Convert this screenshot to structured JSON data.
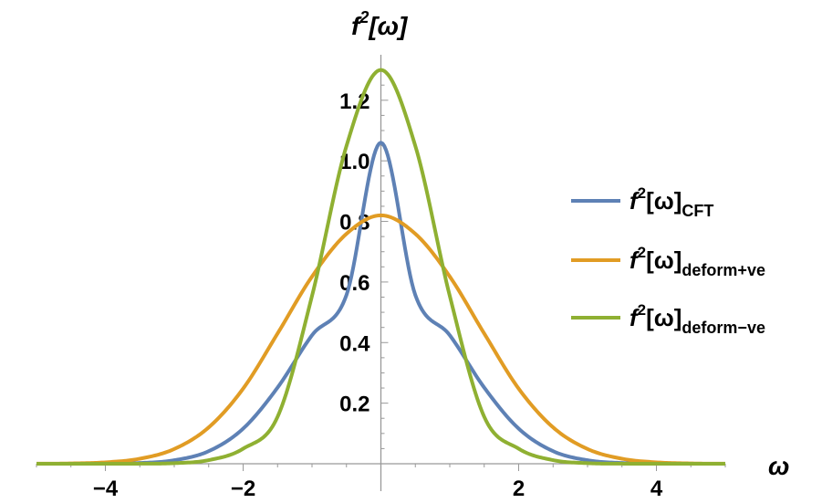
{
  "chart_data": {
    "type": "line",
    "xlabel": "ω",
    "ylabel": "f²[ω]",
    "ylabel_base": "f",
    "ylabel_sup": "2",
    "ylabel_rest": "[ω]",
    "xlim": [
      -5,
      5
    ],
    "ylim": [
      0,
      1.32
    ],
    "x_ticks": [
      -4,
      -2,
      2,
      4
    ],
    "x_tick_labels": [
      "−4",
      "−2",
      "2",
      "4"
    ],
    "y_ticks": [
      0.2,
      0.4,
      0.6,
      0.8,
      1.0,
      1.2
    ],
    "y_tick_labels": [
      "0.2",
      "0.4",
      "0.6",
      "0.8",
      "1.0",
      "1.2"
    ],
    "legend_position": "right",
    "grid": false,
    "series": [
      {
        "name": "f²[ω]CFT",
        "label_main": "[ω]",
        "label_sub": "CFT",
        "color": "#5e81b5",
        "x": [
          -5,
          -4.5,
          -4,
          -3.5,
          -3,
          -2.5,
          -2,
          -1.5,
          -1,
          -0.5,
          0,
          0.5,
          1,
          1.5,
          2,
          2.5,
          3,
          3.5,
          4,
          4.5,
          5
        ],
        "y": [
          0.0,
          0.0001,
          0.0005,
          0.0025,
          0.0116,
          0.0415,
          0.116,
          0.2515,
          0.4243,
          0.5568,
          1.06,
          0.5568,
          0.4243,
          0.2515,
          0.116,
          0.0415,
          0.0116,
          0.0025,
          0.0005,
          0.0001,
          0.0
        ]
      },
      {
        "name": "f²[ω]deform+ve",
        "label_main": "[ω]",
        "label_sub": "deform+ve",
        "color": "#e19c24",
        "x": [
          -5,
          -4.5,
          -4,
          -3.5,
          -3,
          -2.5,
          -2,
          -1.5,
          -1,
          -0.5,
          0,
          0.5,
          1,
          1.5,
          2,
          2.5,
          3,
          3.5,
          4,
          4.5,
          5
        ],
        "y": [
          0.0002,
          0.0011,
          0.0047,
          0.0166,
          0.0487,
          0.12,
          0.248,
          0.43,
          0.618,
          0.759,
          0.82,
          0.759,
          0.618,
          0.43,
          0.248,
          0.12,
          0.0487,
          0.0166,
          0.0047,
          0.0011,
          0.0002
        ]
      },
      {
        "name": "f²[ω]deform−ve",
        "label_main": "[ω]",
        "label_sub": "deform−ve",
        "color": "#8fb032",
        "x": [
          -5,
          -4.5,
          -4,
          -3.5,
          -3,
          -2.5,
          -2,
          -1.5,
          -1,
          -0.5,
          0,
          0.5,
          1,
          1.5,
          2,
          2.5,
          3,
          3.5,
          4,
          4.5,
          5
        ],
        "y": [
          0.0,
          0.0,
          0.0,
          0.0002,
          0.0019,
          0.0119,
          0.0497,
          0.155,
          0.554,
          1.049,
          1.3,
          1.049,
          0.554,
          0.155,
          0.0497,
          0.0119,
          0.0019,
          0.0002,
          0.0,
          0.0,
          0.0
        ]
      }
    ]
  }
}
